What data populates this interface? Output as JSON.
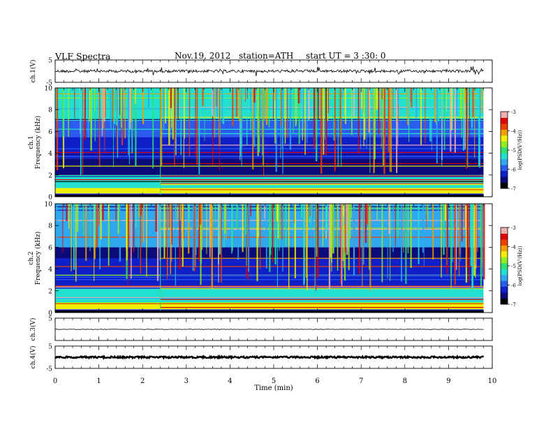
{
  "header": {
    "title": "VLF Spectra",
    "date": "Nov.19, 2012",
    "station": "station=ATH",
    "start": "start UT = 3 :30: 0"
  },
  "colors": {
    "colormap": [
      "#000000",
      "#0a0a7a",
      "#1020c8",
      "#2a5cf0",
      "#2fa8f0",
      "#22e0d0",
      "#30e070",
      "#90ee20",
      "#f0f000",
      "#f0a000",
      "#f04000",
      "#e00000",
      "#f0b0b0"
    ],
    "trace": "#000000",
    "frame": "#000000"
  },
  "chart_data": [
    {
      "type": "line",
      "panel": "ch1-waveform",
      "ylabel": "ch.1(V)",
      "yticks": [
        "5",
        "-5"
      ],
      "ylim": [
        -5,
        5
      ],
      "xlim": [
        0,
        10
      ],
      "description_of_signal": "noisy trace centered near 0 V with spikes",
      "baseline_value": 0.0
    },
    {
      "type": "heatmap",
      "panel": "ch1-spectrogram",
      "ylabel_top": "ch.1",
      "ylabel": "Frequency (kHz)",
      "yticks": [
        "10",
        "8",
        "6",
        "4",
        "2",
        "0"
      ],
      "ylim": [
        0,
        10
      ],
      "xlim": [
        0,
        9.8
      ],
      "colorbar": {
        "label": "log(PSD(V²/Hz))",
        "ticks": [
          "-3",
          "-4",
          "-5",
          "-6",
          "-7"
        ],
        "range": [
          -7,
          -3
        ]
      },
      "bands": [
        {
          "f_low": 0.0,
          "f_high": 0.3,
          "level": -6.5
        },
        {
          "f_low": 0.3,
          "f_high": 0.8,
          "level": -4.2
        },
        {
          "f_low": 0.8,
          "f_high": 2.0,
          "level": -5.3
        },
        {
          "f_low": 2.0,
          "f_high": 3.5,
          "level": -6.6
        },
        {
          "f_low": 3.5,
          "f_high": 5.5,
          "level": -6.3
        },
        {
          "f_low": 5.5,
          "f_high": 7.0,
          "level": -5.9
        },
        {
          "f_low": 7.0,
          "f_high": 10.0,
          "level": -5.4
        }
      ],
      "transition_time_min": 2.4
    },
    {
      "type": "heatmap",
      "panel": "ch2-spectrogram",
      "ylabel_top": "ch.2",
      "ylabel": "Frequency (kHz)",
      "yticks": [
        "10",
        "8",
        "6",
        "4",
        "2",
        "0"
      ],
      "ylim": [
        0,
        10
      ],
      "xlim": [
        0,
        9.8
      ],
      "colorbar": {
        "label": "log(PSD(V²/Hz))",
        "ticks": [
          "-3",
          "-4",
          "-5",
          "-6",
          "-7"
        ],
        "range": [
          -7,
          -3
        ]
      },
      "bands": [
        {
          "f_low": 0.0,
          "f_high": 0.3,
          "level": -6.5
        },
        {
          "f_low": 0.3,
          "f_high": 0.9,
          "level": -4.3
        },
        {
          "f_low": 0.9,
          "f_high": 2.2,
          "level": -5.2
        },
        {
          "f_low": 2.2,
          "f_high": 3.5,
          "level": -6.2
        },
        {
          "f_low": 3.5,
          "f_high": 5.0,
          "level": -6.4
        },
        {
          "f_low": 5.0,
          "f_high": 6.0,
          "level": -6.8
        },
        {
          "f_low": 6.0,
          "f_high": 10.0,
          "level": -5.8
        }
      ],
      "transition_time_min": 2.4
    },
    {
      "type": "line",
      "panel": "ch3-waveform",
      "ylabel": "ch.3(V)",
      "yticks": [
        "5"
      ],
      "ylim": [
        -5,
        5
      ],
      "xlim": [
        0,
        10
      ],
      "baseline_value": 0.0
    },
    {
      "type": "line",
      "panel": "ch4-waveform",
      "ylabel": "ch.4(V)",
      "yticks": [
        "5",
        "-5"
      ],
      "ylim": [
        -5,
        5
      ],
      "xlim": [
        0,
        10
      ],
      "baseline_value": 0.0
    }
  ],
  "xaxis": {
    "label": "Time (min)",
    "ticks": [
      "0",
      "1",
      "2",
      "3",
      "4",
      "5",
      "6",
      "7",
      "8",
      "9",
      "10"
    ],
    "range": [
      0,
      10
    ]
  }
}
